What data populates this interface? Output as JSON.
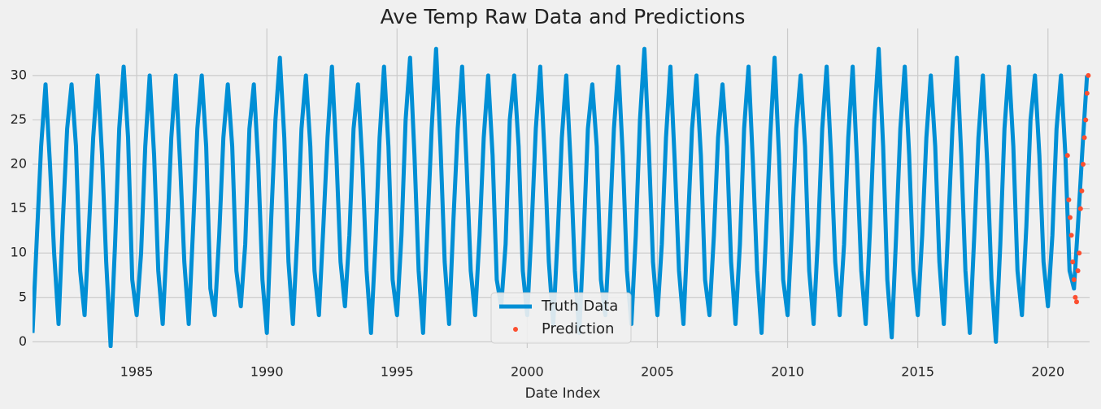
{
  "chart_data": {
    "type": "line",
    "title": "Ave Temp Raw Data and Predictions",
    "x_label": "Date Index",
    "xlim": [
      1981.0,
      2021.6
    ],
    "ylim": [
      -0.7,
      35.3
    ],
    "xticks": [
      1985,
      1990,
      1995,
      2000,
      2005,
      2010,
      2015,
      2020
    ],
    "yticks": [
      0,
      5,
      10,
      15,
      20,
      25,
      30
    ],
    "grid": true,
    "legend": "lower center",
    "series": [
      {
        "name": "Truth Data",
        "color": "#008fd5",
        "mode": "line",
        "x": [
          1981.0,
          1981.17,
          1981.33,
          1981.5,
          1981.67,
          1981.83,
          1982.0,
          1982.17,
          1982.33,
          1982.5,
          1982.67,
          1982.83,
          1983.0,
          1983.17,
          1983.33,
          1983.5,
          1983.67,
          1983.83,
          1984.0,
          1984.17,
          1984.33,
          1984.5,
          1984.67,
          1984.83,
          1985.0,
          1985.17,
          1985.33,
          1985.5,
          1985.67,
          1985.83,
          1986.0,
          1986.17,
          1986.33,
          1986.5,
          1986.67,
          1986.83,
          1987.0,
          1987.17,
          1987.33,
          1987.5,
          1987.67,
          1987.83,
          1988.0,
          1988.17,
          1988.33,
          1988.5,
          1988.67,
          1988.83,
          1989.0,
          1989.17,
          1989.33,
          1989.5,
          1989.67,
          1989.83,
          1990.0,
          1990.17,
          1990.33,
          1990.5,
          1990.67,
          1990.83,
          1991.0,
          1991.17,
          1991.33,
          1991.5,
          1991.67,
          1991.83,
          1992.0,
          1992.17,
          1992.33,
          1992.5,
          1992.67,
          1992.83,
          1993.0,
          1993.17,
          1993.33,
          1993.5,
          1993.67,
          1993.83,
          1994.0,
          1994.17,
          1994.33,
          1994.5,
          1994.67,
          1994.83,
          1995.0,
          1995.17,
          1995.33,
          1995.5,
          1995.67,
          1995.83,
          1996.0,
          1996.17,
          1996.33,
          1996.5,
          1996.67,
          1996.83,
          1997.0,
          1997.17,
          1997.33,
          1997.5,
          1997.67,
          1997.83,
          1998.0,
          1998.17,
          1998.33,
          1998.5,
          1998.67,
          1998.83,
          1999.0,
          1999.17,
          1999.33,
          1999.5,
          1999.67,
          1999.83,
          2000.0,
          2000.17,
          2000.33,
          2000.5,
          2000.67,
          2000.83,
          2001.0,
          2001.17,
          2001.33,
          2001.5,
          2001.67,
          2001.83,
          2002.0,
          2002.17,
          2002.33,
          2002.5,
          2002.67,
          2002.83,
          2003.0,
          2003.17,
          2003.33,
          2003.5,
          2003.67,
          2003.83,
          2004.0,
          2004.17,
          2004.33,
          2004.5,
          2004.67,
          2004.83,
          2005.0,
          2005.17,
          2005.33,
          2005.5,
          2005.67,
          2005.83,
          2006.0,
          2006.17,
          2006.33,
          2006.5,
          2006.67,
          2006.83,
          2007.0,
          2007.17,
          2007.33,
          2007.5,
          2007.67,
          2007.83,
          2008.0,
          2008.17,
          2008.33,
          2008.5,
          2008.67,
          2008.83,
          2009.0,
          2009.17,
          2009.33,
          2009.5,
          2009.67,
          2009.83,
          2010.0,
          2010.17,
          2010.33,
          2010.5,
          2010.67,
          2010.83,
          2011.0,
          2011.17,
          2011.33,
          2011.5,
          2011.67,
          2011.83,
          2012.0,
          2012.17,
          2012.33,
          2012.5,
          2012.67,
          2012.83,
          2013.0,
          2013.17,
          2013.33,
          2013.5,
          2013.67,
          2013.83,
          2014.0,
          2014.17,
          2014.33,
          2014.5,
          2014.67,
          2014.83,
          2015.0,
          2015.17,
          2015.33,
          2015.5,
          2015.67,
          2015.83,
          2016.0,
          2016.17,
          2016.33,
          2016.5,
          2016.67,
          2016.83,
          2017.0,
          2017.17,
          2017.33,
          2017.5,
          2017.67,
          2017.83,
          2018.0,
          2018.17,
          2018.33,
          2018.5,
          2018.67,
          2018.83,
          2019.0,
          2019.17,
          2019.33,
          2019.5,
          2019.67,
          2019.83,
          2020.0,
          2020.17,
          2020.33,
          2020.5,
          2020.67,
          2020.83,
          2021.0,
          2021.17,
          2021.33,
          2021.5
        ],
        "values": [
          1,
          12,
          22,
          29,
          20,
          10,
          2,
          14,
          24,
          29,
          22,
          8,
          3,
          13,
          23,
          30,
          21,
          9,
          -0.5,
          11,
          24,
          31,
          23,
          7,
          3,
          10,
          22,
          30,
          21,
          8,
          2,
          12,
          23,
          30,
          20,
          9,
          2,
          13,
          24,
          30,
          22,
          6,
          3,
          12,
          23,
          29,
          22,
          8,
          4,
          11,
          24,
          29,
          20,
          7,
          1,
          14,
          25,
          32,
          23,
          9,
          2,
          12,
          24,
          30,
          22,
          8,
          3,
          13,
          23,
          31,
          21,
          9,
          4,
          12,
          24,
          29,
          20,
          8,
          1,
          11,
          23,
          31,
          22,
          7,
          3,
          12,
          25,
          32,
          21,
          8,
          1,
          13,
          24,
          33,
          22,
          9,
          2,
          14,
          24,
          31,
          20,
          8,
          3,
          12,
          23,
          30,
          21,
          7,
          4,
          11,
          25,
          30,
          22,
          8,
          3,
          13,
          24,
          31,
          21,
          9,
          2,
          12,
          23,
          30,
          20,
          8,
          1,
          12,
          24,
          29,
          22,
          7,
          3,
          13,
          24,
          31,
          21,
          8,
          2,
          12,
          25,
          33,
          22,
          9,
          3,
          11,
          23,
          31,
          20,
          8,
          2,
          13,
          24,
          30,
          21,
          7,
          3,
          12,
          23,
          29,
          22,
          9,
          2,
          11,
          24,
          31,
          20,
          8,
          1,
          12,
          23,
          32,
          21,
          7,
          3,
          13,
          24,
          30,
          22,
          8,
          2,
          12,
          24,
          31,
          21,
          9,
          3,
          11,
          23,
          31,
          20,
          8,
          2,
          13,
          25,
          33,
          22,
          7,
          0.5,
          12,
          24,
          31,
          21,
          8,
          3,
          12,
          23,
          30,
          22,
          9,
          2,
          13,
          24,
          32,
          21,
          8,
          1,
          12,
          23,
          30,
          20,
          7,
          0,
          11,
          24,
          31,
          22,
          8,
          3,
          13,
          25,
          30,
          21,
          9,
          4,
          12,
          24,
          30,
          21,
          8,
          6,
          14,
          22,
          30
        ]
      },
      {
        "name": "Prediction",
        "color": "#fc4f30",
        "mode": "markers",
        "x": [
          2020.75,
          2020.8,
          2020.85,
          2020.9,
          2020.95,
          2021.0,
          2021.05,
          2021.1,
          2021.15,
          2021.2,
          2021.25,
          2021.3,
          2021.35,
          2021.4,
          2021.45,
          2021.5,
          2021.55
        ],
        "values": [
          21,
          16,
          14,
          12,
          9,
          7,
          5,
          4.5,
          8,
          10,
          15,
          17,
          20,
          23,
          25,
          28,
          30
        ]
      }
    ]
  }
}
